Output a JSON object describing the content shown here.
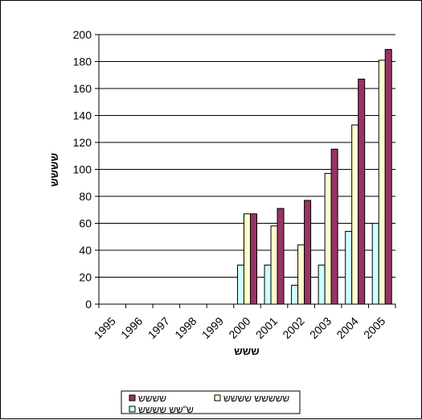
{
  "chart_data": {
    "type": "bar",
    "title": "",
    "xlabel": "ששש",
    "ylabel": "שששש",
    "categories": [
      "1995",
      "1996",
      "1997",
      "1998",
      "1999",
      "2000",
      "2001",
      "2002",
      "2003",
      "2004",
      "2005"
    ],
    "ylim": [
      0,
      200
    ],
    "yticks": [
      0,
      20,
      40,
      60,
      80,
      100,
      120,
      140,
      160,
      180,
      200
    ],
    "grid": true,
    "legend_position": "bottom",
    "series": [
      {
        "name": "ש\"שש שששש",
        "color": "#ccffff",
        "values": [
          0,
          0,
          0,
          0,
          0,
          29,
          29,
          14,
          29,
          54,
          60
        ]
      },
      {
        "name": "ששששש שששש",
        "color": "#ffffcc",
        "values": [
          0,
          0,
          0,
          0,
          0,
          67,
          58,
          44,
          97,
          133,
          181
        ]
      },
      {
        "name": "שששש",
        "color": "#993366",
        "values": [
          0,
          0,
          0,
          0,
          0,
          67,
          71,
          77,
          115,
          167,
          189
        ]
      }
    ],
    "legend_order": [
      2,
      1,
      0
    ]
  }
}
